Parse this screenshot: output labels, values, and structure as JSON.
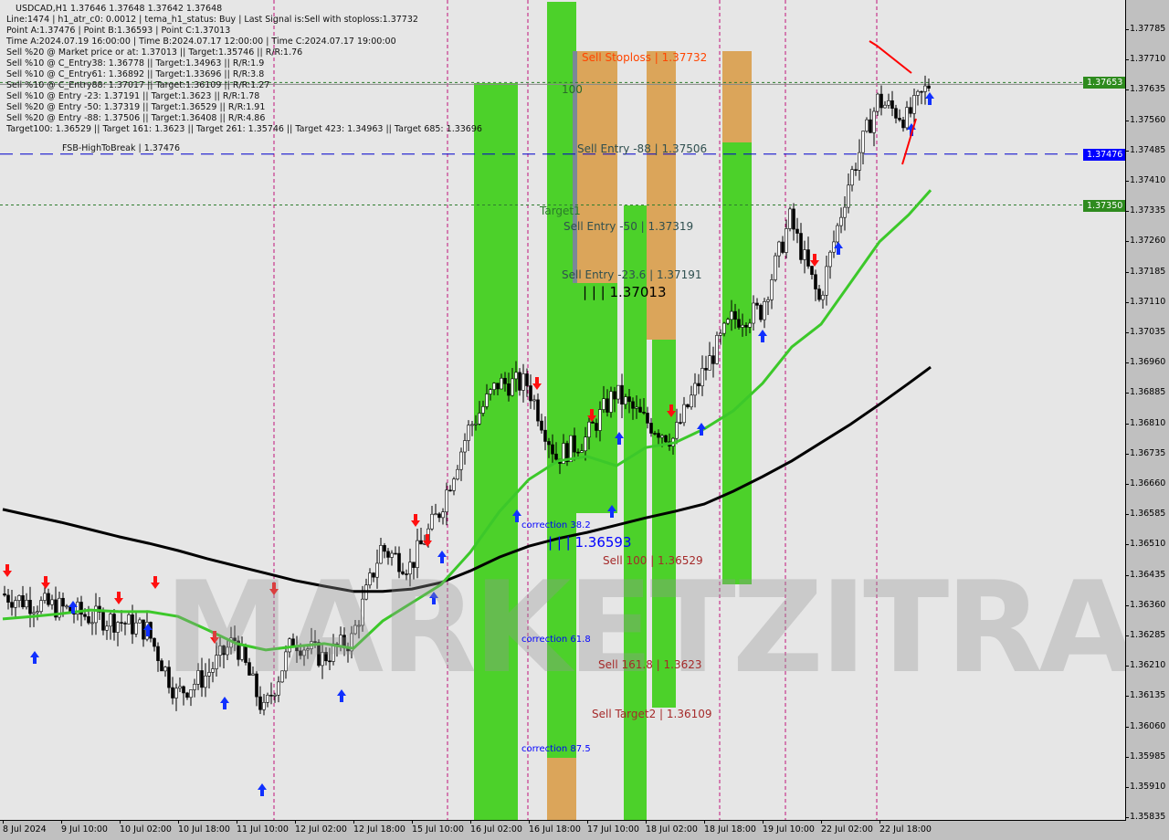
{
  "header": {
    "symbol_line": "USDCAD,H1  1.37646 1.37648 1.37642 1.37648",
    "lines": [
      "Line:1474 | h1_atr_c0: 0.0012 | tema_h1_status: Buy | Last Signal is:Sell with stoploss:1.37732",
      "Point A:1.37476 | Point B:1.36593 | Point C:1.37013",
      "Time A:2024.07.19 16:00:00 | Time B:2024.07.17 12:00:00 | Time C:2024.07.17 19:00:00",
      "Sell %20 @ Market price or at: 1.37013 || Target:1.35746 || R/R:1.76",
      "Sell %10 @ C_Entry38: 1.36778 || Target:1.34963 || R/R:1.9",
      "Sell %10 @ C_Entry61: 1.36892 || Target:1.33696 || R/R:3.8",
      "Sell %10 @ C_Entry88: 1.37017 || Target:1.36109 || R/R:1.27",
      "Sell %10 @ Entry -23: 1.37191 || Target:1.3623 || R/R:1.78",
      "Sell %20 @ Entry -50: 1.37319 || Target:1.36529 || R/R:1.91",
      "Sell %20 @ Entry -88: 1.37506 || Target:1.36408 || R/R:4.86",
      "Target100: 1.36529 || Target 161: 1.3623 || Target 261: 1.35746 || Target 423: 1.34963 || Target 685: 1.33696"
    ]
  },
  "annotations": {
    "fsb": "FSB-HighToBreak | 1.37476",
    "sell_stoploss": "Sell Stoploss | 1.37732",
    "level_100": "100",
    "sell_entry_88": "Sell Entry -88 | 1.37506",
    "target1": "Target1",
    "sell_entry_50": "Sell Entry -50 | 1.37319",
    "sell_entry_236": "Sell Entry -23.6 | 1.37191",
    "point_c": "| | | 1.37013",
    "correction_382": "correction 38.2",
    "point_b": "| | | 1.36593",
    "sell_100": "Sell 100 | 1.36529",
    "correction_618": "correction 61.8",
    "sell_1618": "Sell 161.8 | 1.3623",
    "sell_target2": "Sell Target2 | 1.36109",
    "correction_875": "correction 87.5",
    "watermark": "MARKETZITRADE"
  },
  "price_badges": [
    {
      "value": "1.37653",
      "color": "#2e8b1e"
    },
    {
      "value": "1.37476",
      "color": "#0000ff"
    },
    {
      "value": "1.37350",
      "color": "#2e8b1e"
    }
  ],
  "colors": {
    "zone_green": "#4cd12a",
    "zone_orange": "#dba55a",
    "ma_fast": "#3cc82a",
    "ma_slow": "#000000",
    "buy_arrow": "#1030ff",
    "sell_arrow": "#ff1010",
    "envelope": "#ff5a00"
  },
  "chart_data": {
    "type": "candlestick",
    "symbol": "USDCAD",
    "timeframe": "H1",
    "ylim": [
      1.35835,
      1.37785
    ],
    "y_ticks": [
      "1.37785",
      "1.37710",
      "1.37635",
      "1.37560",
      "1.37485",
      "1.37410",
      "1.37335",
      "1.37260",
      "1.37185",
      "1.37110",
      "1.37035",
      "1.36960",
      "1.36885",
      "1.36810",
      "1.36735",
      "1.36660",
      "1.36585",
      "1.36510",
      "1.36435",
      "1.36360",
      "1.36285",
      "1.36210",
      "1.36135",
      "1.36060",
      "1.35985",
      "1.35910",
      "1.35835"
    ],
    "x_ticks": [
      "8 Jul 2024",
      "9 Jul 10:00",
      "10 Jul 02:00",
      "10 Jul 18:00",
      "11 Jul 10:00",
      "12 Jul 02:00",
      "12 Jul 18:00",
      "15 Jul 10:00",
      "16 Jul 02:00",
      "16 Jul 18:00",
      "17 Jul 10:00",
      "18 Jul 02:00",
      "18 Jul 18:00",
      "19 Jul 10:00",
      "22 Jul 02:00",
      "22 Jul 18:00"
    ],
    "close": [
      1.36388,
      1.36366,
      1.36354,
      1.36332,
      1.36321,
      1.36298,
      1.3614,
      1.36185,
      1.36275,
      1.36095,
      1.36275,
      1.3623,
      1.36275,
      1.36501,
      1.36456,
      1.36592,
      1.36795,
      1.36908,
      1.36908,
      1.36727,
      1.36772,
      1.36885,
      1.36818,
      1.36772,
      1.36931,
      1.37066,
      1.37089,
      1.37315,
      1.37112,
      1.37405,
      1.37609,
      1.37564,
      1.37648
    ],
    "series": [
      {
        "values": [
          1.36597,
          1.36581,
          1.36565,
          1.36547,
          1.36529,
          1.36513,
          1.36495,
          1.36475,
          1.36457,
          1.36439,
          1.36421,
          1.36407,
          1.36394,
          1.36394,
          1.364,
          1.36416,
          1.36445,
          1.36479,
          1.36506,
          1.36525,
          1.3654,
          1.36558,
          1.36576,
          1.36592,
          1.3661,
          1.36642,
          1.36678,
          1.36717,
          1.36762,
          1.36807,
          1.36857,
          1.36909,
          1.36949
        ]
      },
      {
        "values": [
          1.36326,
          1.36332,
          1.36339,
          1.36348,
          1.36344,
          1.36344,
          1.36332,
          1.36299,
          1.36265,
          1.36249,
          1.36258,
          1.36265,
          1.36253,
          1.36321,
          1.36366,
          1.36411,
          1.36491,
          1.36592,
          1.36671,
          1.36717,
          1.36728,
          1.36705,
          1.3675,
          1.36762,
          1.36796,
          1.36841,
          1.36909,
          1.36999,
          1.37055,
          1.37157,
          1.37259,
          1.37326,
          1.37387
        ]
      }
    ],
    "horizontal_levels": [
      1.37653,
      1.37476,
      1.3735
    ],
    "grid": false
  }
}
